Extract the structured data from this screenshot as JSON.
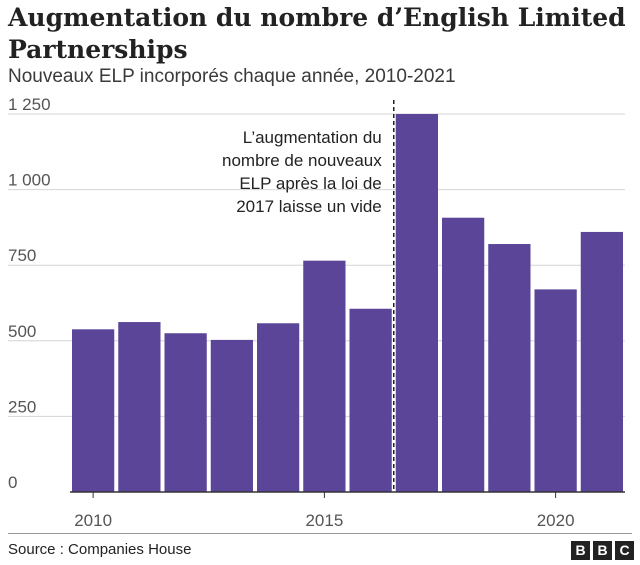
{
  "chart_data": {
    "type": "bar",
    "title": "Augmentation du nombre d’English Limited Partnerships",
    "subtitle": "Nouveaux ELP incorporés chaque année, 2010-2021",
    "x": [
      2010,
      2011,
      2012,
      2013,
      2014,
      2015,
      2016,
      2017,
      2018,
      2019,
      2020,
      2021
    ],
    "values": [
      538,
      562,
      525,
      503,
      558,
      765,
      606,
      1250,
      907,
      820,
      670,
      860
    ],
    "ylim": [
      0,
      1250
    ],
    "yticks": [
      0,
      250,
      500,
      750,
      1000,
      1250
    ],
    "ytick_labels": [
      "0",
      "250",
      "500",
      "750",
      "1 000",
      "1 250"
    ],
    "xticks": [
      2010,
      2015,
      2020
    ],
    "xtick_labels": [
      "2010",
      "2015",
      "2020"
    ],
    "grid": true,
    "bar_color": "#5a4599",
    "annotation": {
      "x": 2016.5,
      "lines": [
        "L’augmentation du",
        "nombre de nouveaux",
        "ELP après la loi de",
        "2017 laisse un vide"
      ]
    }
  },
  "footer": {
    "source": "Source : Companies House",
    "logo_letters": [
      "B",
      "B",
      "C"
    ]
  }
}
